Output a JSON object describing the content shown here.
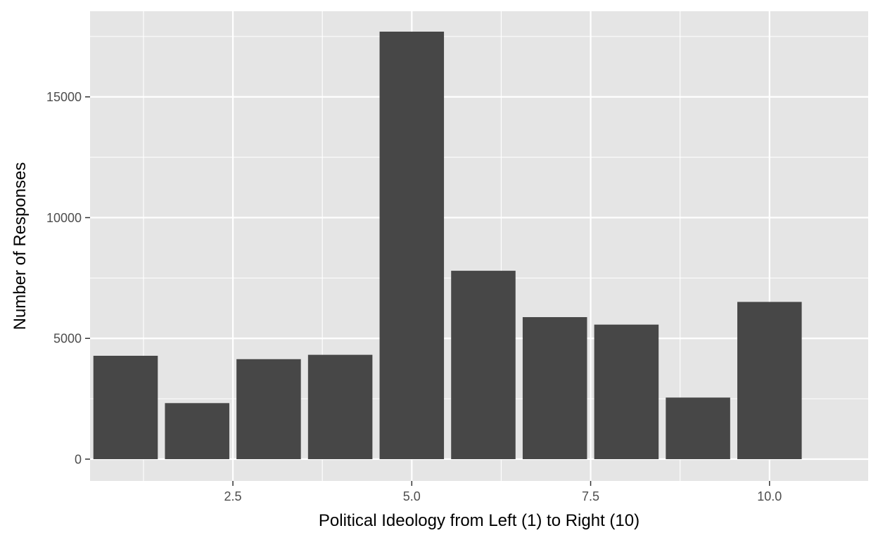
{
  "chart_data": {
    "type": "bar",
    "xlabel": "Political Ideology from Left (1) to Right (10)",
    "ylabel": "Number of Responses",
    "x": [
      1,
      2,
      3,
      4,
      5,
      6,
      7,
      8,
      9,
      10
    ],
    "values": [
      4280,
      2320,
      4140,
      4320,
      17700,
      7800,
      5880,
      5570,
      2550,
      6510
    ],
    "xlim": [
      0.5,
      10.5
    ],
    "ylim": [
      0,
      17700
    ],
    "x_ticks": [
      2.5,
      5.0,
      7.5,
      10.0
    ],
    "x_tick_labels": [
      "2.5",
      "5.0",
      "7.5",
      "10.0"
    ],
    "y_ticks": [
      0,
      5000,
      10000,
      15000
    ],
    "y_tick_labels": [
      "0",
      "5000",
      "10000",
      "15000"
    ],
    "grid": true,
    "colors": {
      "panel": "#e5e5e5",
      "grid": "#ffffff",
      "bar": "#474747",
      "tick": "#333333"
    }
  }
}
